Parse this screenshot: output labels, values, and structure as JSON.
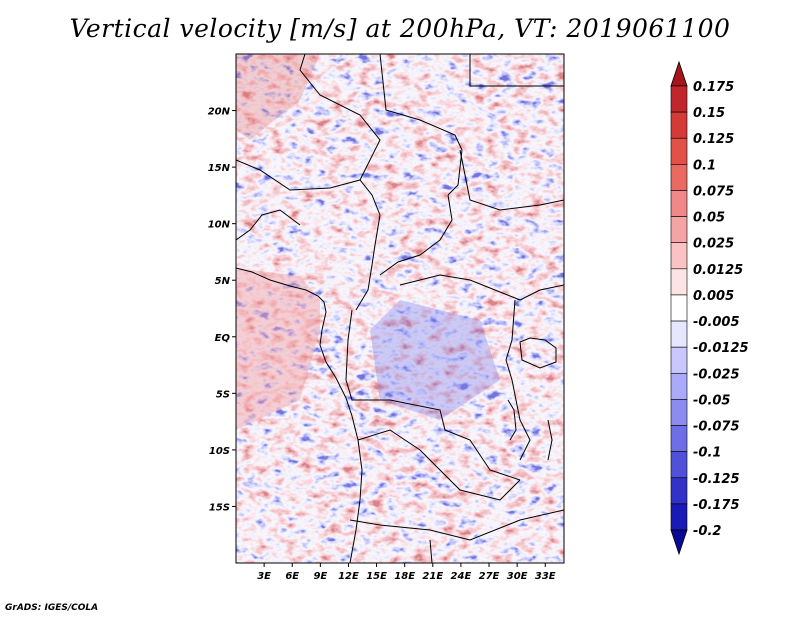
{
  "title": "Vertical velocity [m/s] at 200hPa, VT: 2019061100",
  "credit": "GrADS: IGES/COLA",
  "map": {
    "lon_range": [
      0,
      35
    ],
    "lat_range": [
      -20,
      25
    ],
    "lat_ticks": [
      {
        "value": 20,
        "label": "20N"
      },
      {
        "value": 15,
        "label": "15N"
      },
      {
        "value": 10,
        "label": "10N"
      },
      {
        "value": 5,
        "label": "5N"
      },
      {
        "value": 0,
        "label": "EQ"
      },
      {
        "value": -5,
        "label": "5S"
      },
      {
        "value": -10,
        "label": "10S"
      },
      {
        "value": -15,
        "label": "15S"
      }
    ],
    "lon_ticks": [
      {
        "value": 3,
        "label": "3E"
      },
      {
        "value": 6,
        "label": "6E"
      },
      {
        "value": 9,
        "label": "9E"
      },
      {
        "value": 12,
        "label": "12E"
      },
      {
        "value": 15,
        "label": "15E"
      },
      {
        "value": 18,
        "label": "18E"
      },
      {
        "value": 21,
        "label": "21E"
      },
      {
        "value": 24,
        "label": "24E"
      },
      {
        "value": 27,
        "label": "27E"
      },
      {
        "value": 30,
        "label": "30E"
      },
      {
        "value": 33,
        "label": "33E"
      }
    ]
  },
  "colorbar": {
    "levels": [
      "0.175",
      "0.15",
      "0.125",
      "0.1",
      "0.075",
      "0.05",
      "0.025",
      "0.0125",
      "0.005",
      "-0.005",
      "-0.0125",
      "-0.025",
      "-0.05",
      "-0.075",
      "-0.1",
      "-0.125",
      "-0.175",
      "-0.2"
    ],
    "colors": [
      "#a8141c",
      "#c0262a",
      "#d43a36",
      "#e25048",
      "#ea6a62",
      "#f0888a",
      "#f5a4a6",
      "#f9c2c4",
      "#fde4e4",
      "#ffffff",
      "#e6e6ff",
      "#c8c8ff",
      "#aaaafa",
      "#8c8cf0",
      "#6e6ee6",
      "#5050d8",
      "#3232c8",
      "#1a1ab4",
      "#0a0a96"
    ]
  }
}
